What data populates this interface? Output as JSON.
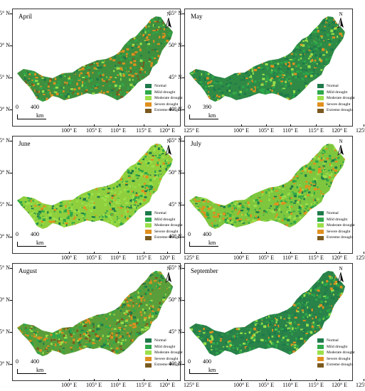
{
  "figure": {
    "panels": [
      {
        "month": "April",
        "scale_distance": "400",
        "scale_unit": "km"
      },
      {
        "month": "May",
        "scale_distance": "390",
        "scale_unit": "km"
      },
      {
        "month": "June",
        "scale_distance": "400",
        "scale_unit": "km"
      },
      {
        "month": "July",
        "scale_distance": "400",
        "scale_unit": "km"
      },
      {
        "month": "August",
        "scale_distance": "400",
        "scale_unit": "km"
      },
      {
        "month": "September",
        "scale_distance": "400",
        "scale_unit": "km"
      }
    ],
    "north_label": "N",
    "scale_zero": "0",
    "legend": [
      {
        "label": "Normal",
        "color": "#1e7a4a"
      },
      {
        "label": "Mild drought",
        "color": "#2ea84a"
      },
      {
        "label": "Moderate drought",
        "color": "#9be04a"
      },
      {
        "label": "Severe drought",
        "color": "#e0901e"
      },
      {
        "label": "Extreme drought",
        "color": "#7a5a1e"
      }
    ],
    "latitude_labels": [
      "55° N",
      "50° N",
      "45° N",
      "40° N"
    ],
    "longitude_labels": [
      "100° E",
      "105° E",
      "110° E",
      "115° E",
      "120° E",
      "125° E"
    ]
  }
}
